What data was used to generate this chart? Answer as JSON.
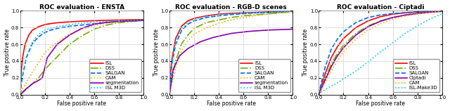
{
  "titles": [
    "ROC evaluation - ENSTA",
    "ROC evaluation - RGB-D scenes",
    "ROC evaluation - Ciptadi"
  ],
  "xlabel": "False positive rate",
  "ylabel": "True positive rate",
  "xlim": [
    0,
    1
  ],
  "ylim": [
    0,
    1
  ],
  "xticks": [
    0,
    0.2,
    0.4,
    0.6,
    0.8,
    1
  ],
  "yticks": [
    0,
    0.2,
    0.4,
    0.6,
    0.8,
    1
  ],
  "plots": [
    {
      "curves": [
        {
          "name": "ISL",
          "color": "#ff0000",
          "linestyle": "solid",
          "linewidth": 1.2,
          "x": [
            0,
            0.01,
            0.02,
            0.04,
            0.07,
            0.1,
            0.15,
            0.2,
            0.25,
            0.3,
            0.4,
            0.5,
            0.6,
            0.7,
            0.8,
            0.9,
            1.0
          ],
          "y": [
            0,
            0.28,
            0.44,
            0.6,
            0.71,
            0.77,
            0.81,
            0.835,
            0.848,
            0.857,
            0.868,
            0.876,
            0.882,
            0.886,
            0.89,
            0.893,
            0.895
          ]
        },
        {
          "name": "DSS",
          "color": "#77aa00",
          "linestyle": "dashdot",
          "linewidth": 1.2,
          "x": [
            0,
            0.05,
            0.1,
            0.15,
            0.2,
            0.3,
            0.4,
            0.5,
            0.6,
            0.7,
            0.8,
            0.9,
            1.0
          ],
          "y": [
            0,
            0.06,
            0.13,
            0.2,
            0.3,
            0.45,
            0.6,
            0.7,
            0.78,
            0.83,
            0.857,
            0.872,
            0.882
          ]
        },
        {
          "name": "SALGAN",
          "color": "#0066ff",
          "linestyle": "dashed",
          "linewidth": 1.2,
          "x": [
            0,
            0.01,
            0.02,
            0.05,
            0.1,
            0.15,
            0.2,
            0.25,
            0.3,
            0.4,
            0.5,
            0.6,
            0.7,
            0.8,
            0.9,
            1.0
          ],
          "y": [
            0,
            0.12,
            0.22,
            0.44,
            0.61,
            0.69,
            0.74,
            0.77,
            0.79,
            0.815,
            0.83,
            0.845,
            0.86,
            0.873,
            0.882,
            0.888
          ]
        },
        {
          "name": "CAM",
          "color": "#ffaa00",
          "linestyle": "dotted",
          "linewidth": 1.2,
          "x": [
            0,
            0.02,
            0.05,
            0.1,
            0.2,
            0.3,
            0.4,
            0.5,
            0.6,
            0.7,
            0.8,
            0.9,
            1.0
          ],
          "y": [
            0,
            0.07,
            0.14,
            0.27,
            0.5,
            0.63,
            0.72,
            0.78,
            0.825,
            0.852,
            0.868,
            0.878,
            0.885
          ]
        },
        {
          "name": "segmentation",
          "color": "#8800aa",
          "linestyle": "solid",
          "linewidth": 1.2,
          "x": [
            0,
            0.05,
            0.1,
            0.15,
            0.18,
            0.22,
            0.3,
            0.4,
            0.5,
            0.6,
            0.7,
            0.8,
            0.9,
            1.0
          ],
          "y": [
            0,
            0.07,
            0.13,
            0.17,
            0.2,
            0.44,
            0.6,
            0.71,
            0.79,
            0.84,
            0.862,
            0.873,
            0.88,
            0.885
          ]
        },
        {
          "name": "ISL M3D",
          "color": "#00ccee",
          "linestyle": "dotted",
          "linewidth": 1.2,
          "x": [
            0,
            0.01,
            0.02,
            0.05,
            0.1,
            0.15,
            0.2,
            0.3,
            0.4,
            0.5,
            0.6,
            0.7,
            0.8,
            0.9,
            1.0
          ],
          "y": [
            0,
            0.13,
            0.22,
            0.45,
            0.63,
            0.72,
            0.77,
            0.81,
            0.835,
            0.852,
            0.865,
            0.875,
            0.882,
            0.887,
            0.89
          ]
        }
      ]
    },
    {
      "curves": [
        {
          "name": "ISL",
          "color": "#ff0000",
          "linestyle": "solid",
          "linewidth": 1.2,
          "x": [
            0,
            0.005,
            0.01,
            0.02,
            0.05,
            0.1,
            0.15,
            0.2,
            0.3,
            0.4,
            0.5,
            0.6,
            0.7,
            0.8,
            0.9,
            1.0
          ],
          "y": [
            0,
            0.18,
            0.28,
            0.42,
            0.67,
            0.82,
            0.88,
            0.91,
            0.94,
            0.96,
            0.97,
            0.975,
            0.98,
            0.985,
            0.99,
            1.0
          ]
        },
        {
          "name": "DSS",
          "color": "#77aa00",
          "linestyle": "dashdot",
          "linewidth": 1.2,
          "x": [
            0,
            0.01,
            0.02,
            0.05,
            0.1,
            0.15,
            0.2,
            0.3,
            0.4,
            0.5,
            0.6,
            0.7,
            0.8,
            0.9,
            1.0
          ],
          "y": [
            0,
            0.1,
            0.18,
            0.4,
            0.61,
            0.71,
            0.79,
            0.86,
            0.89,
            0.92,
            0.94,
            0.952,
            0.963,
            0.975,
            0.99
          ]
        },
        {
          "name": "SALGAN",
          "color": "#0066ff",
          "linestyle": "dashed",
          "linewidth": 1.2,
          "x": [
            0,
            0.005,
            0.01,
            0.02,
            0.05,
            0.1,
            0.15,
            0.2,
            0.3,
            0.4,
            0.5,
            0.6,
            0.7,
            0.8,
            0.9,
            1.0
          ],
          "y": [
            0,
            0.14,
            0.22,
            0.36,
            0.6,
            0.77,
            0.84,
            0.88,
            0.92,
            0.94,
            0.955,
            0.965,
            0.975,
            0.98,
            0.987,
            0.993
          ]
        },
        {
          "name": "CAM",
          "color": "#ffaa00",
          "linestyle": "dotted",
          "linewidth": 1.2,
          "x": [
            0,
            0.01,
            0.02,
            0.05,
            0.1,
            0.15,
            0.2,
            0.3,
            0.4,
            0.5,
            0.6,
            0.7,
            0.8,
            0.9,
            1.0
          ],
          "y": [
            0,
            0.07,
            0.13,
            0.32,
            0.53,
            0.64,
            0.72,
            0.8,
            0.85,
            0.89,
            0.92,
            0.943,
            0.96,
            0.975,
            0.99
          ]
        },
        {
          "name": "segmentation",
          "color": "#8800aa",
          "linestyle": "solid",
          "linewidth": 1.2,
          "x": [
            0,
            0.03,
            0.08,
            0.15,
            0.25,
            0.35,
            0.5,
            0.65,
            0.8,
            1.0
          ],
          "y": [
            0,
            0.3,
            0.46,
            0.55,
            0.63,
            0.68,
            0.73,
            0.755,
            0.77,
            0.78
          ]
        },
        {
          "name": "ISL M3D",
          "color": "#00ccee",
          "linestyle": "dotted",
          "linewidth": 1.2,
          "x": [
            0,
            0.005,
            0.01,
            0.02,
            0.05,
            0.1,
            0.15,
            0.2,
            0.3,
            0.4,
            0.5,
            0.6,
            0.7,
            0.8,
            0.9,
            1.0
          ],
          "y": [
            0,
            0.15,
            0.24,
            0.38,
            0.63,
            0.79,
            0.86,
            0.9,
            0.935,
            0.955,
            0.966,
            0.975,
            0.98,
            0.986,
            0.991,
            0.995
          ]
        }
      ]
    },
    {
      "curves": [
        {
          "name": "ISL",
          "color": "#ff0000",
          "linestyle": "solid",
          "linewidth": 1.2,
          "x": [
            0,
            0.01,
            0.02,
            0.05,
            0.1,
            0.15,
            0.2,
            0.3,
            0.4,
            0.5,
            0.6,
            0.7,
            0.8,
            0.9,
            1.0
          ],
          "y": [
            0,
            0.05,
            0.1,
            0.24,
            0.44,
            0.57,
            0.67,
            0.8,
            0.88,
            0.93,
            0.96,
            0.975,
            0.985,
            0.993,
            0.998
          ]
        },
        {
          "name": "DSS",
          "color": "#77aa00",
          "linestyle": "dashdot",
          "linewidth": 1.2,
          "x": [
            0,
            0.01,
            0.02,
            0.05,
            0.1,
            0.15,
            0.2,
            0.3,
            0.4,
            0.5,
            0.6,
            0.7,
            0.8,
            0.9,
            1.0
          ],
          "y": [
            0,
            0.04,
            0.08,
            0.19,
            0.36,
            0.49,
            0.59,
            0.73,
            0.82,
            0.88,
            0.92,
            0.95,
            0.97,
            0.984,
            0.993
          ]
        },
        {
          "name": "SALGAN",
          "color": "#0066ff",
          "linestyle": "dashed",
          "linewidth": 1.2,
          "x": [
            0,
            0.005,
            0.01,
            0.02,
            0.05,
            0.1,
            0.15,
            0.2,
            0.3,
            0.4,
            0.5,
            0.6,
            0.7,
            0.8,
            0.9,
            1.0
          ],
          "y": [
            0,
            0.03,
            0.07,
            0.14,
            0.32,
            0.54,
            0.66,
            0.75,
            0.86,
            0.92,
            0.95,
            0.967,
            0.978,
            0.987,
            0.993,
            0.997
          ]
        },
        {
          "name": "Ciptadi",
          "color": "#8800aa",
          "linestyle": "solid",
          "linewidth": 1.2,
          "x": [
            0,
            0.01,
            0.02,
            0.05,
            0.1,
            0.15,
            0.2,
            0.3,
            0.4,
            0.5,
            0.6,
            0.7,
            0.8,
            0.9,
            1.0
          ],
          "y": [
            0,
            0.03,
            0.07,
            0.17,
            0.33,
            0.46,
            0.56,
            0.71,
            0.81,
            0.875,
            0.92,
            0.948,
            0.967,
            0.982,
            0.993
          ]
        },
        {
          "name": "CAM",
          "color": "#ffaa00",
          "linestyle": "dotted",
          "linewidth": 1.2,
          "x": [
            0,
            0.01,
            0.02,
            0.05,
            0.1,
            0.15,
            0.2,
            0.3,
            0.4,
            0.5,
            0.6,
            0.7,
            0.8,
            0.9,
            1.0
          ],
          "y": [
            0,
            0.03,
            0.06,
            0.14,
            0.28,
            0.4,
            0.51,
            0.66,
            0.77,
            0.845,
            0.9,
            0.938,
            0.962,
            0.979,
            0.992
          ]
        },
        {
          "name": "ISL-Make3D",
          "color": "#00ccee",
          "linestyle": "dotted",
          "linewidth": 1.2,
          "x": [
            0,
            0.02,
            0.05,
            0.1,
            0.15,
            0.2,
            0.3,
            0.4,
            0.5,
            0.6,
            0.7,
            0.8,
            0.9,
            1.0
          ],
          "y": [
            0,
            0.03,
            0.06,
            0.1,
            0.14,
            0.19,
            0.28,
            0.39,
            0.51,
            0.62,
            0.73,
            0.82,
            0.9,
            0.965
          ]
        }
      ]
    }
  ],
  "background_color": "#ffffff",
  "grid_color": "#d0d0d0",
  "title_fontsize": 6.5,
  "label_fontsize": 5.5,
  "tick_fontsize": 5.0,
  "legend_fontsize": 5.0
}
